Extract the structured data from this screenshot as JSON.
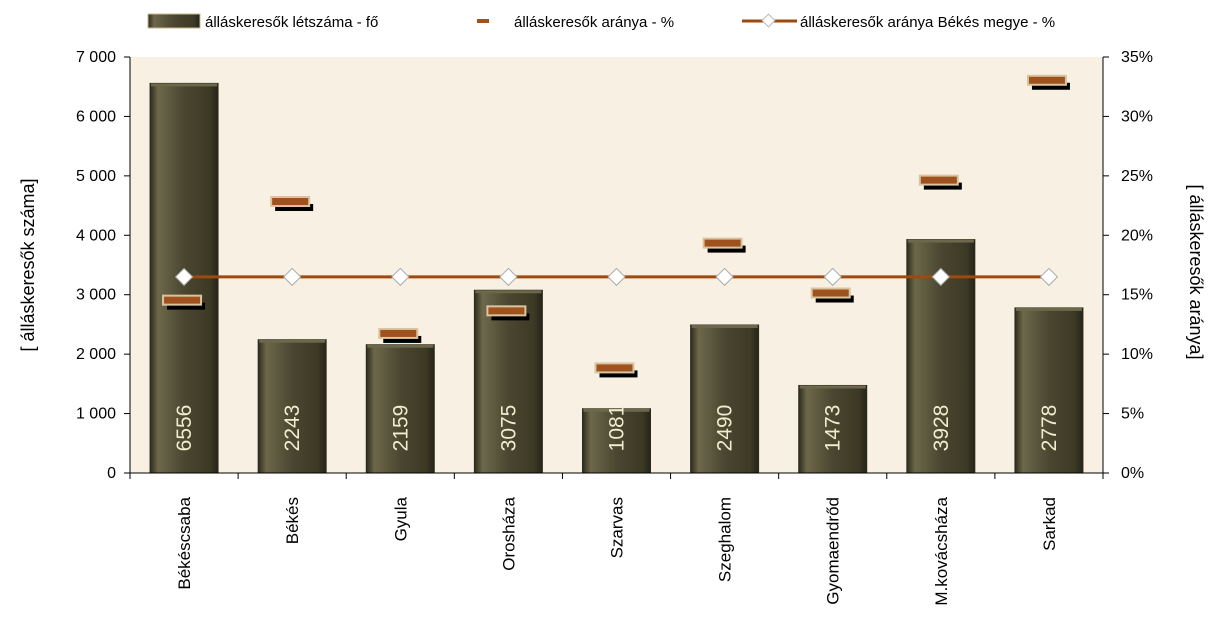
{
  "chart_data": {
    "type": "bar",
    "categories": [
      "Békéscsaba",
      "Békés",
      "Gyula",
      "Orosháza",
      "Szarvas",
      "Szeghalom",
      "Gyomaendrőd",
      "M.kovácsháza",
      "Sarkad"
    ],
    "series": [
      {
        "name": "álláskeresők létszáma - fő",
        "type": "bar",
        "axis": "left",
        "values": [
          6556,
          2243,
          2159,
          3075,
          1081,
          2490,
          1473,
          3928,
          2778
        ],
        "labels": [
          "6556",
          "2243",
          "2159",
          "3075",
          "1081",
          "2490",
          "1473",
          "3928",
          "2778"
        ]
      },
      {
        "name": "álláskeresők aránya - %",
        "type": "marker",
        "axis": "right",
        "values": [
          14.5,
          22.8,
          11.7,
          13.6,
          8.8,
          19.3,
          15.1,
          24.6,
          33.0
        ]
      },
      {
        "name": "álláskeresők aránya Békés megye - %",
        "type": "line",
        "axis": "right",
        "values": [
          16.5,
          16.5,
          16.5,
          16.5,
          16.5,
          16.5,
          16.5,
          16.5,
          16.5
        ]
      }
    ],
    "ylabel": "[ álláskeresők száma]",
    "y2label": "[ álláskeresők aránya]",
    "ylim": [
      0,
      7000
    ],
    "y2lim": [
      0,
      35
    ],
    "yticks": [
      "0",
      "1 000",
      "2 000",
      "3 000",
      "4 000",
      "5 000",
      "6 000",
      "7 000"
    ],
    "y2ticks": [
      "0%",
      "5%",
      "10%",
      "15%",
      "20%",
      "25%",
      "30%",
      "35%"
    ],
    "legend_position": "top",
    "grid": false,
    "colors": {
      "plot_background": "#f8f1e3",
      "bar_fill": "#4a4630",
      "bar_highlight": "#6d684b",
      "bar_dark": "#2e2b1c",
      "marker_fill": "#a0521e",
      "marker_border": "#d9c4a0",
      "marker_shadow": "#000000",
      "county_line": "#9b4a10",
      "diamond_fill": "#ffffff",
      "bar_label_text": "#f2eccf"
    }
  }
}
